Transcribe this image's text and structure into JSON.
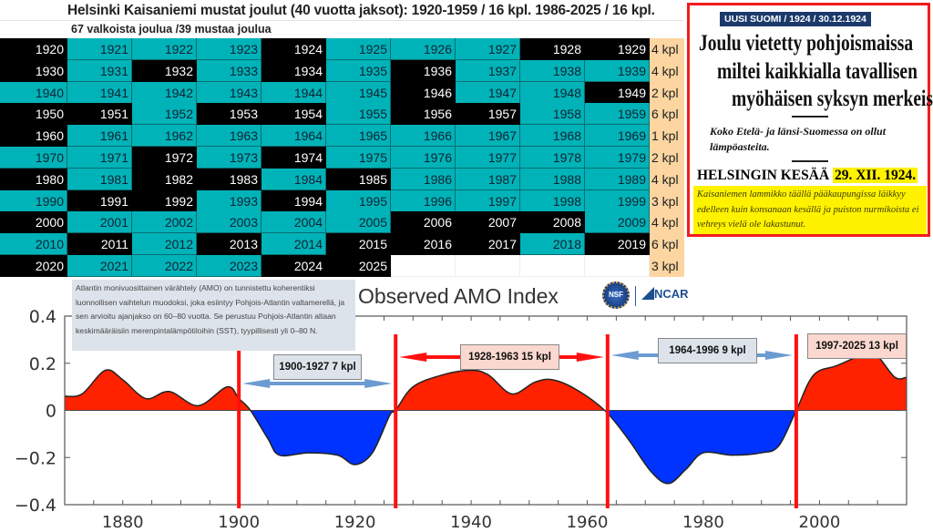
{
  "table": {
    "title": "Helsinki Kaisaniemi mustat joulut (40 vuotta jaksot): 1920-1959 / 16 kpl. 1986-2025 / 16 kpl.",
    "subtitle": "67 valkoista joulua /39 mustaa joulua",
    "colors": {
      "black_christmas": "#000000",
      "white_christmas": "#00b3b8",
      "count": "#fdd5a0"
    },
    "rows": [
      {
        "decade": 1920,
        "black": [
          1,
          0,
          0,
          0,
          1,
          0,
          0,
          0,
          1,
          1
        ],
        "count": "4 kpl"
      },
      {
        "decade": 1930,
        "black": [
          1,
          0,
          1,
          0,
          1,
          0,
          1,
          0,
          0,
          0
        ],
        "count": "4 kpl"
      },
      {
        "decade": 1940,
        "black": [
          0,
          0,
          0,
          0,
          0,
          0,
          1,
          0,
          0,
          1
        ],
        "count": "2 kpl"
      },
      {
        "decade": 1950,
        "black": [
          1,
          1,
          0,
          1,
          1,
          0,
          1,
          1,
          0,
          0
        ],
        "count": "6 kpl"
      },
      {
        "decade": 1960,
        "black": [
          1,
          0,
          0,
          0,
          0,
          0,
          0,
          0,
          0,
          0
        ],
        "count": "1 kpl"
      },
      {
        "decade": 1970,
        "black": [
          0,
          0,
          1,
          0,
          1,
          0,
          0,
          0,
          0,
          0
        ],
        "count": "2 kpl"
      },
      {
        "decade": 1980,
        "black": [
          1,
          0,
          1,
          1,
          0,
          1,
          0,
          0,
          0,
          0
        ],
        "count": "4 kpl"
      },
      {
        "decade": 1990,
        "black": [
          0,
          1,
          1,
          0,
          1,
          0,
          0,
          0,
          0,
          0
        ],
        "count": "3 kpl"
      },
      {
        "decade": 2000,
        "black": [
          1,
          0,
          0,
          0,
          0,
          0,
          1,
          1,
          1,
          0
        ],
        "count": "4 kpl"
      },
      {
        "decade": 2010,
        "black": [
          0,
          1,
          0,
          1,
          0,
          1,
          1,
          1,
          0,
          1
        ],
        "count": "6 kpl"
      },
      {
        "decade": 2020,
        "black": [
          1,
          0,
          0,
          0,
          1,
          1
        ],
        "count": "3 kpl"
      }
    ]
  },
  "newspaper": {
    "source": "UUSI SUOMI  /  1924  /  30.12.1924",
    "headline": [
      "Joulu vietetty pohjoismaissa",
      "miltei kaikkialla tavallisen",
      "myöhäisen syksyn merkeissä."
    ],
    "subheading": "Koko Etelä- ja länsi-Suomessa on ollut lämpöasteita.",
    "section": "HELSINGIN KESÄÄ",
    "date": "29. XII. 1924.",
    "body": "Kaisaniemen lammikko täällä pääkaupungissa läikkyy edelleen kuin konsanaan kesällä ja puiston nurmikoista ei vehreys vielä ole lakastunut."
  },
  "description": "Atlantin monivuosittainen värähtely (AMO) on tunnistettu koherentiksi luonnollisen vaihtelun muodoksi, joka esiintyy Pohjois-Atlantin valtamerellä, ja sen arvioitu ajanjakso on 60–80 vuotta. Se perustuu Pohjois-Atlantin altaan keskimääräisiin merenpintalämpötiloihin (SST), tyypillisesti yli 0–80 N.",
  "logos": {
    "nsf": "NSF",
    "ncar": "NCAR"
  },
  "chart_data": {
    "type": "area",
    "title": "Observed AMO Index",
    "xlabel": "",
    "ylabel": "",
    "xlim": [
      1870,
      2015
    ],
    "ylim": [
      -0.4,
      0.4
    ],
    "xticks": [
      1880,
      1900,
      1920,
      1940,
      1960,
      1980,
      2000
    ],
    "yticks": [
      {
        "v": 0.4,
        "t": "0.4"
      },
      {
        "v": 0.2,
        "t": "0.2"
      },
      {
        "v": 0,
        "t": "0"
      },
      {
        "v": -0.2,
        "t": "−0.2"
      },
      {
        "v": -0.4,
        "t": "−0.4"
      }
    ],
    "positive_color": "#ff2200",
    "negative_color": "#0033ff",
    "x": [
      1870,
      1873,
      1877,
      1880,
      1884,
      1888,
      1893,
      1898,
      1900,
      1902,
      1905,
      1907,
      1912,
      1917,
      1920,
      1923,
      1926,
      1927,
      1930,
      1935,
      1940,
      1943,
      1947,
      1951,
      1954,
      1958,
      1963,
      1967,
      1971,
      1974,
      1977,
      1980,
      1985,
      1990,
      1993,
      1996,
      1999,
      2003,
      2008,
      2010,
      2013,
      2015
    ],
    "y": [
      0.06,
      0.07,
      0.17,
      0.13,
      0.05,
      0.08,
      0.02,
      0.1,
      0.05,
      0.0,
      -0.12,
      -0.19,
      -0.18,
      -0.19,
      -0.23,
      -0.18,
      -0.02,
      0.0,
      0.1,
      0.15,
      0.17,
      0.15,
      0.07,
      0.12,
      0.13,
      0.09,
      0.0,
      -0.12,
      -0.26,
      -0.31,
      -0.25,
      -0.18,
      -0.19,
      -0.18,
      -0.15,
      0.0,
      0.15,
      0.19,
      0.24,
      0.23,
      0.14,
      0.14
    ],
    "period_dividers": [
      1900,
      1927,
      1963.5,
      1996
    ],
    "annotations": [
      {
        "text": "1900-1927 7 kpl",
        "from": 1900,
        "to": 1927,
        "style": "blue"
      },
      {
        "text": "1928-1963 15 kpl",
        "from": 1927,
        "to": 1963.5,
        "style": "red"
      },
      {
        "text": "1964-1996 9 kpl",
        "from": 1963.5,
        "to": 1996,
        "style": "blue"
      },
      {
        "text": "1997-2025 13 kpl",
        "from": 1996,
        "to": 2015,
        "style": "pink"
      }
    ]
  }
}
